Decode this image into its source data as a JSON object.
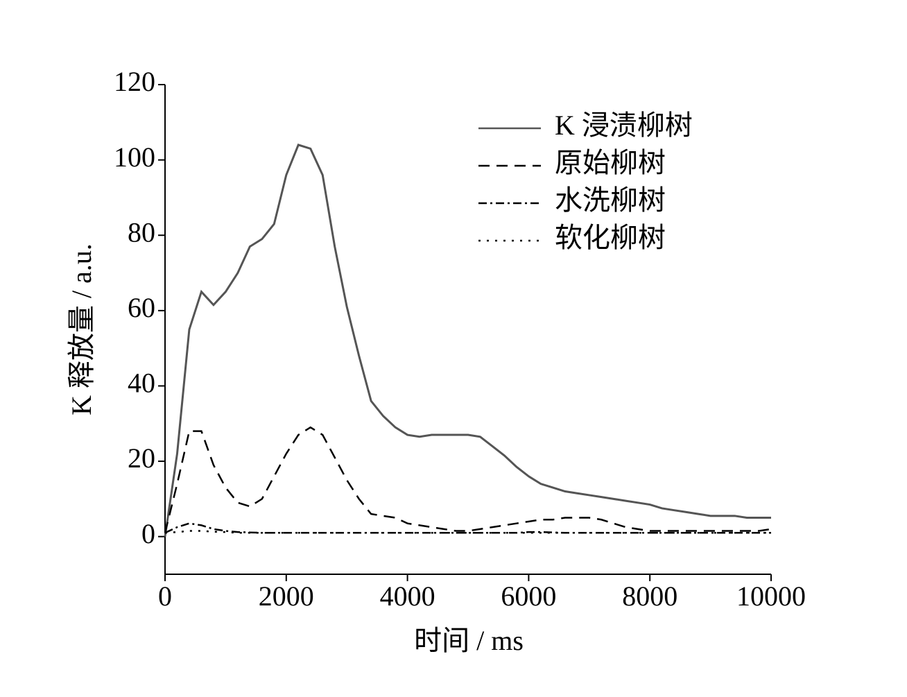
{
  "chart_data": {
    "type": "line",
    "x_label": "时间 / ms",
    "y_label": "K 释放量 / a.u.",
    "x": [
      0,
      200,
      400,
      600,
      800,
      1000,
      1200,
      1400,
      1600,
      1800,
      2000,
      2200,
      2400,
      2600,
      2800,
      3000,
      3200,
      3400,
      3600,
      3800,
      4000,
      4200,
      4400,
      4600,
      4800,
      5000,
      5200,
      5400,
      5600,
      5800,
      6000,
      6200,
      6400,
      6600,
      6800,
      7000,
      7200,
      7400,
      7600,
      7800,
      8000,
      8200,
      8400,
      8600,
      8800,
      9000,
      9200,
      9400,
      9600,
      9800,
      10000
    ],
    "series": [
      {
        "name": "K 浸渍柳树",
        "color": "#555555",
        "style": "solid",
        "values": [
          0,
          22,
          55,
          65,
          61.5,
          65,
          70,
          77,
          79,
          83,
          96,
          104,
          103,
          96,
          77,
          61,
          48,
          36,
          32,
          29,
          27,
          26.5,
          27,
          27,
          27,
          27,
          26.5,
          24,
          21.5,
          18.5,
          16,
          14,
          13,
          12,
          11.5,
          11,
          10.5,
          10,
          9.5,
          9,
          8.5,
          7.5,
          7,
          6.5,
          6,
          5.5,
          5.5,
          5.5,
          5,
          5,
          5
        ]
      },
      {
        "name": "原始柳树",
        "color": "#000000",
        "style": "dashed",
        "values": [
          1,
          14,
          28,
          28,
          19,
          13,
          9,
          8,
          10,
          16,
          22,
          27,
          29,
          27,
          21,
          15,
          10,
          6,
          5.5,
          5,
          3.5,
          3,
          2.5,
          2,
          1.5,
          1.5,
          2,
          2.5,
          3,
          3.5,
          4,
          4.5,
          4.5,
          5,
          5,
          5,
          4.5,
          3.5,
          2.5,
          2,
          1.5,
          1.5,
          1.5,
          1.5,
          1.5,
          1.5,
          1.5,
          1.5,
          1.5,
          1.5,
          2
        ]
      },
      {
        "name": "水洗柳树",
        "color": "#000000",
        "style": "dashdot",
        "values": [
          1,
          2.5,
          3.5,
          3,
          2,
          1.5,
          1.2,
          1.1,
          1,
          1,
          1,
          1,
          1,
          1,
          1,
          1,
          1,
          1,
          1,
          1,
          1,
          1,
          1,
          1,
          1,
          1,
          1,
          1,
          1,
          1,
          1.2,
          1.2,
          1.1,
          1,
          1,
          1,
          1,
          1,
          1,
          1,
          1,
          1,
          1,
          1,
          1,
          1,
          1,
          1,
          1,
          1,
          1
        ]
      },
      {
        "name": "软化柳树",
        "color": "#000000",
        "style": "dotted",
        "values": [
          1,
          1.2,
          1.5,
          1.5,
          1.3,
          1.2,
          1,
          1,
          1,
          1,
          1,
          1,
          1,
          1,
          1,
          1,
          1,
          1,
          1,
          1,
          1,
          1,
          1,
          1,
          1,
          1,
          1,
          1,
          1,
          1,
          1,
          1,
          1,
          1,
          1,
          1,
          1,
          1,
          1,
          1,
          1,
          1,
          1,
          1,
          1,
          1,
          1,
          1,
          1,
          1,
          1
        ]
      }
    ],
    "xlim": [
      0,
      10000
    ],
    "xticks": [
      0,
      2000,
      4000,
      6000,
      8000,
      10000
    ],
    "ylim": [
      -10,
      120
    ],
    "yticks": [
      0,
      20,
      40,
      60,
      80,
      100,
      120
    ],
    "legend": "upper right"
  }
}
